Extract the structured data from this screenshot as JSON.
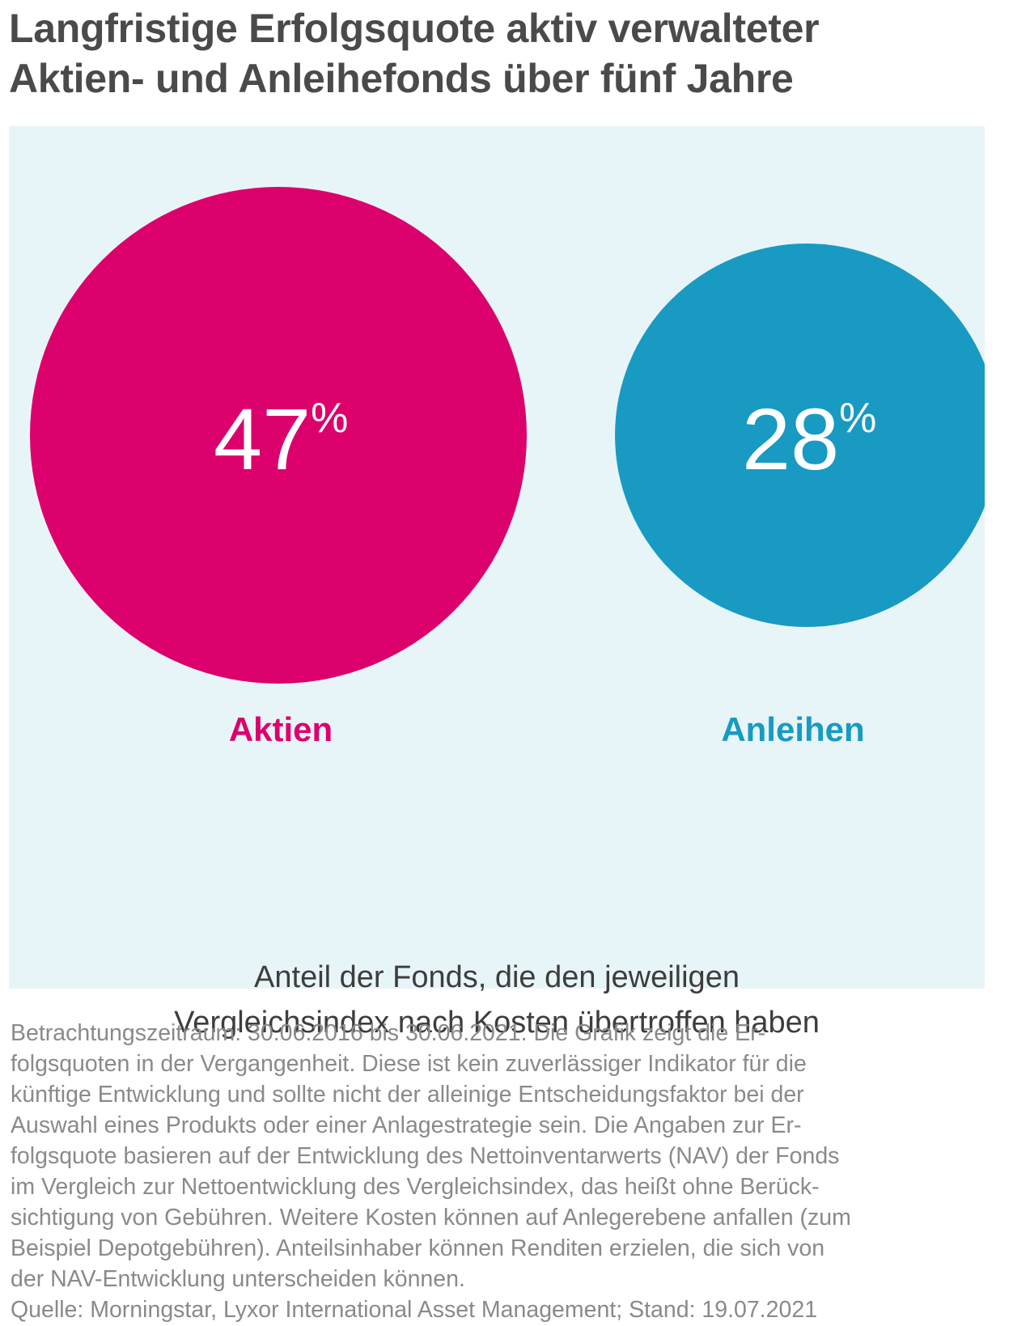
{
  "title_lines": [
    "Langfristige Erfolgsquote aktiv verwalteter",
    "Aktien- und Anleihefonds über fünf Jahre"
  ],
  "caption_lines": [
    "Anteil der Fonds, die den jeweiligen",
    "Vergleichsindex nach Kosten übertroffen haben"
  ],
  "footnote_lines": [
    "Betrachtungszeitraum: 30.06.2016 bis 30.06.2021. Die Grafik zeigt die Er-",
    "folgsquoten in der Vergangenheit. Diese ist kein zuverlässiger Indikator für die",
    "künftige Entwicklung und sollte nicht der alleinige Entscheidungsfaktor bei der",
    "Auswahl eines Produkts oder einer Anlagestrategie sein. Die Angaben zur Er-",
    "folgsquote basieren auf der Entwicklung des Nettoinventarwerts (NAV) der Fonds",
    "im Vergleich zur Nettoentwicklung des Vergleichsindex, das heißt ohne Berück-",
    "sichtigung von Gebühren. Weitere Kosten können auf Anlegerebene anfallen (zum",
    "Beispiel Depotgebühren). Anteilsinhaber können Renditen erzielen, die sich von",
    "der NAV-Entwicklung unterscheiden können.",
    "Quelle: Morningstar, Lyxor International Asset Management; Stand: 19.07.2021"
  ],
  "chart_data": {
    "type": "bubble",
    "unit": "%",
    "categories": [
      "Aktien",
      "Anleihen"
    ],
    "values": [
      47,
      28
    ],
    "value_labels": [
      "47",
      "28"
    ],
    "colors": [
      "#dc006c",
      "#189ac3"
    ]
  }
}
